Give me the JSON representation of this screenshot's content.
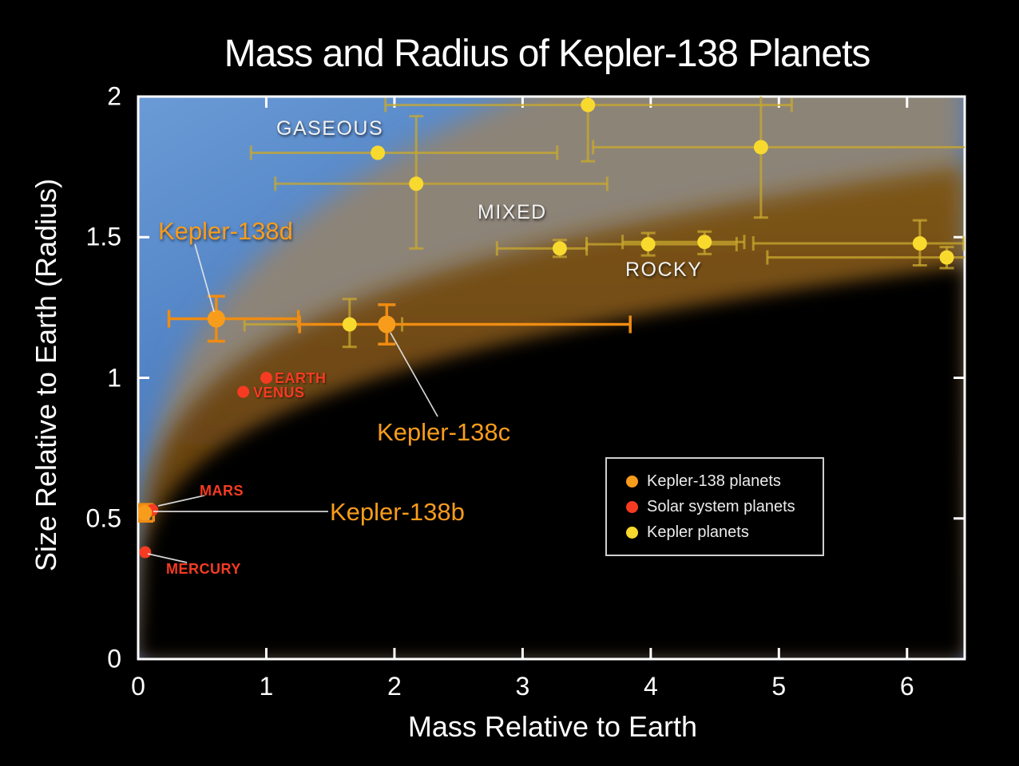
{
  "title": "Mass and Radius of Kepler-138 Planets",
  "axes": {
    "x": {
      "label": "Mass Relative to Earth",
      "ticks": [
        0,
        1,
        2,
        3,
        4,
        5,
        6
      ],
      "tick_labels": [
        "0",
        "1",
        "2",
        "3",
        "4",
        "5",
        "6"
      ],
      "min": 0,
      "max": 6.45
    },
    "y": {
      "label": "Size Relative to Earth (Radius)",
      "ticks": [
        0.5,
        1,
        1.5
      ],
      "tick_labels": [
        "0",
        "0.5",
        "1",
        "1.5",
        "2"
      ],
      "tick_label_values": [
        0,
        0.5,
        1,
        1.5,
        2
      ],
      "min": 0,
      "max": 2
    }
  },
  "region_labels": {
    "gaseous": "GASEOUS",
    "mixed": "MIXED",
    "rocky": "ROCKY"
  },
  "region_colors": {
    "gaseous_blue": "#4a7cc0",
    "mixed_gray": "#8d8478",
    "rocky_brown": "#6e4a12",
    "background": "#000000"
  },
  "annotations": {
    "kepler_138d": "Kepler-138d",
    "kepler_138c": "Kepler-138c",
    "kepler_138b": "Kepler-138b",
    "earth": "EARTH",
    "venus": "VENUS",
    "mars": "MARS",
    "mercury": "MERCURY"
  },
  "legend": {
    "items": [
      {
        "label": "Kepler-138 planets",
        "color": "#f89c1c"
      },
      {
        "label": "Solar system planets",
        "color": "#f63b22"
      },
      {
        "label": "Kepler planets",
        "color": "#f8d92e"
      }
    ]
  },
  "chart_data": {
    "type": "scatter",
    "title": "Mass and Radius of Kepler-138 Planets",
    "xlabel": "Mass Relative to Earth",
    "ylabel": "Size Relative to Earth (Radius)",
    "xlim": [
      0,
      6.45
    ],
    "ylim": [
      0,
      2
    ],
    "grid": false,
    "legend_position": "lower right",
    "regions": [
      {
        "name": "GASEOUS",
        "color": "#4a7cc0"
      },
      {
        "name": "MIXED",
        "color": "#8d8478"
      },
      {
        "name": "ROCKY",
        "color": "#6e4a12"
      }
    ],
    "series": [
      {
        "name": "Kepler-138 planets",
        "color": "#f89c1c",
        "bar_color": "#ef8c12",
        "point_radius": 11,
        "points": [
          {
            "label": "Kepler-138b",
            "x": 0.05,
            "y": 0.52,
            "xerr": [
              0.01,
              0.12
            ],
            "yerr": [
              0.49,
              0.55
            ],
            "r": 9.5
          },
          {
            "label": "Kepler-138c",
            "x": 1.94,
            "y": 1.19,
            "xerr": [
              1.26,
              3.84
            ],
            "yerr": [
              1.12,
              1.26
            ]
          },
          {
            "label": "Kepler-138d",
            "x": 0.61,
            "y": 1.21,
            "xerr": [
              0.24,
              1.25
            ],
            "yerr": [
              1.13,
              1.29
            ]
          }
        ]
      },
      {
        "name": "Solar system planets",
        "color": "#f63b22",
        "point_radius": 7.5,
        "points": [
          {
            "label": "MERCURY",
            "x": 0.055,
            "y": 0.38
          },
          {
            "label": "MARS",
            "x": 0.11,
            "y": 0.53
          },
          {
            "label": "VENUS",
            "x": 0.82,
            "y": 0.95
          },
          {
            "label": "EARTH",
            "x": 1.0,
            "y": 1.0
          }
        ]
      },
      {
        "name": "Kepler planets",
        "color": "#f8d92e",
        "bar_color": "rgba(200,168,45,0.75)",
        "point_radius": 9,
        "points": [
          {
            "x": 1.65,
            "y": 1.19,
            "xerr": [
              0.83,
              2.06
            ],
            "yerr": [
              1.11,
              1.28
            ]
          },
          {
            "x": 1.87,
            "y": 1.8,
            "xerr": [
              0.88,
              3.27
            ]
          },
          {
            "x": 2.17,
            "y": 1.69,
            "xerr": [
              1.07,
              3.66
            ],
            "yerr": [
              1.46,
              1.93
            ]
          },
          {
            "x": 3.29,
            "y": 1.46,
            "xerr": [
              2.8,
              3.5
            ],
            "yerr": [
              1.43,
              1.49
            ]
          },
          {
            "x": 3.51,
            "y": 1.97,
            "xerr": [
              1.93,
              5.1
            ],
            "yerr": [
              1.77,
              2.0
            ]
          },
          {
            "x": 3.98,
            "y": 1.475,
            "xerr": [
              3.5,
              4.67
            ],
            "yerr": [
              1.435,
              1.515
            ]
          },
          {
            "x": 4.42,
            "y": 1.483,
            "xerr": [
              3.78,
              4.73
            ],
            "yerr": [
              1.44,
              1.52
            ]
          },
          {
            "x": 4.86,
            "y": 1.82,
            "xerr": [
              3.55,
              6.45
            ],
            "yerr": [
              1.57,
              2.0
            ]
          },
          {
            "x": 6.1,
            "y": 1.478,
            "xerr": [
              4.8,
              6.44
            ],
            "yerr": [
              1.4,
              1.56
            ]
          },
          {
            "x": 6.31,
            "y": 1.428,
            "xerr": [
              4.91,
              6.45
            ],
            "yerr": [
              1.39,
              1.465
            ]
          }
        ]
      }
    ]
  }
}
